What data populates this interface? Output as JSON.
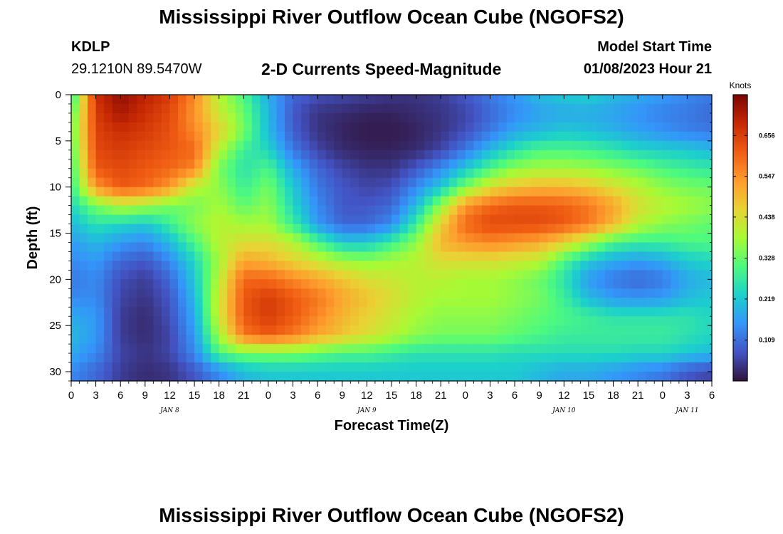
{
  "header": {
    "title": "Mississippi River Outflow Ocean Cube (NGOFS2)",
    "station_id": "KDLP",
    "station_coords": "29.1210N  89.5470W",
    "subtitle": "2-D Currents Speed-Magnitude",
    "model_start_label": "Model Start Time",
    "model_start_value": "01/08/2023 Hour 21"
  },
  "footer": {
    "title": "Mississippi River Outflow Ocean Cube (NGOFS2)"
  },
  "chart_data": {
    "type": "heatmap",
    "xlabel": "Forecast Time(Z)",
    "ylabel": "Depth (ft)",
    "x_unit": "hours from 2023-01-08 00Z",
    "xlim": [
      0,
      78
    ],
    "ylim": [
      0,
      31
    ],
    "x_tick_values": [
      0,
      3,
      6,
      9,
      12,
      15,
      18,
      21,
      24,
      27,
      30,
      33,
      36,
      39,
      42,
      45,
      48,
      51,
      54,
      57,
      60,
      63,
      66,
      69,
      72,
      75,
      78
    ],
    "x_tick_labels": [
      "0",
      "3",
      "6",
      "9",
      "12",
      "15",
      "18",
      "21",
      "0",
      "3",
      "6",
      "9",
      "12",
      "15",
      "18",
      "21",
      "0",
      "3",
      "6",
      "9",
      "12",
      "15",
      "18",
      "21",
      "0",
      "3",
      "6"
    ],
    "date_labels": [
      {
        "text": "JAN 8",
        "x": 12
      },
      {
        "text": "JAN 9",
        "x": 36
      },
      {
        "text": "JAN 10",
        "x": 60
      },
      {
        "text": "JAN 11",
        "x": 75
      }
    ],
    "y_ticks": [
      0,
      5,
      10,
      15,
      20,
      25,
      30
    ],
    "colorbar": {
      "unit": "Knots",
      "range": [
        0,
        0.765
      ],
      "ticks": [
        0.109,
        0.219,
        0.328,
        0.438,
        0.547,
        0.656
      ]
    },
    "grid_hours": [
      0,
      3,
      6,
      9,
      12,
      15,
      18,
      21,
      24,
      27,
      30,
      33,
      36,
      39,
      42,
      45,
      48,
      51,
      54,
      57,
      60,
      63,
      66,
      69,
      72,
      75,
      78
    ],
    "grid_depths": [
      0,
      2,
      4,
      6,
      8,
      10,
      12,
      14,
      16,
      18,
      20,
      22,
      24,
      26,
      28,
      30
    ],
    "speed_knots": [
      [
        0.25,
        0.68,
        0.74,
        0.7,
        0.66,
        0.56,
        0.4,
        0.3,
        0.18,
        0.1,
        0.07,
        0.06,
        0.05,
        0.04,
        0.04,
        0.05,
        0.08,
        0.12,
        0.16,
        0.2,
        0.22,
        0.23,
        0.2,
        0.18,
        0.16,
        0.14,
        0.12
      ],
      [
        0.3,
        0.66,
        0.72,
        0.68,
        0.64,
        0.54,
        0.42,
        0.33,
        0.2,
        0.08,
        0.04,
        0.03,
        0.02,
        0.02,
        0.03,
        0.04,
        0.06,
        0.1,
        0.14,
        0.17,
        0.18,
        0.18,
        0.17,
        0.15,
        0.13,
        0.12,
        0.1
      ],
      [
        0.32,
        0.65,
        0.68,
        0.66,
        0.63,
        0.56,
        0.46,
        0.34,
        0.2,
        0.09,
        0.04,
        0.02,
        0.01,
        0.01,
        0.02,
        0.04,
        0.07,
        0.12,
        0.18,
        0.2,
        0.22,
        0.21,
        0.19,
        0.17,
        0.15,
        0.13,
        0.12
      ],
      [
        0.3,
        0.64,
        0.66,
        0.64,
        0.62,
        0.6,
        0.4,
        0.28,
        0.24,
        0.12,
        0.06,
        0.03,
        0.02,
        0.02,
        0.03,
        0.06,
        0.12,
        0.2,
        0.26,
        0.3,
        0.3,
        0.29,
        0.27,
        0.24,
        0.23,
        0.22,
        0.2
      ],
      [
        0.28,
        0.62,
        0.64,
        0.62,
        0.6,
        0.56,
        0.34,
        0.26,
        0.3,
        0.18,
        0.1,
        0.06,
        0.04,
        0.04,
        0.08,
        0.14,
        0.22,
        0.3,
        0.36,
        0.38,
        0.38,
        0.37,
        0.35,
        0.33,
        0.3,
        0.28,
        0.27
      ],
      [
        0.27,
        0.54,
        0.62,
        0.6,
        0.54,
        0.4,
        0.36,
        0.28,
        0.34,
        0.22,
        0.12,
        0.08,
        0.06,
        0.07,
        0.14,
        0.22,
        0.34,
        0.44,
        0.48,
        0.5,
        0.5,
        0.48,
        0.44,
        0.4,
        0.36,
        0.34,
        0.33
      ],
      [
        0.24,
        0.34,
        0.4,
        0.38,
        0.34,
        0.34,
        0.38,
        0.32,
        0.36,
        0.24,
        0.14,
        0.08,
        0.08,
        0.1,
        0.2,
        0.36,
        0.54,
        0.6,
        0.62,
        0.62,
        0.61,
        0.58,
        0.52,
        0.44,
        0.4,
        0.38,
        0.36
      ],
      [
        0.2,
        0.26,
        0.24,
        0.22,
        0.28,
        0.36,
        0.4,
        0.38,
        0.38,
        0.28,
        0.16,
        0.1,
        0.1,
        0.14,
        0.28,
        0.46,
        0.6,
        0.64,
        0.64,
        0.64,
        0.62,
        0.58,
        0.5,
        0.4,
        0.36,
        0.34,
        0.32
      ],
      [
        0.16,
        0.2,
        0.16,
        0.14,
        0.2,
        0.3,
        0.4,
        0.44,
        0.44,
        0.4,
        0.3,
        0.22,
        0.22,
        0.28,
        0.36,
        0.5,
        0.54,
        0.56,
        0.54,
        0.52,
        0.46,
        0.38,
        0.3,
        0.28,
        0.28,
        0.3,
        0.3
      ],
      [
        0.14,
        0.16,
        0.1,
        0.08,
        0.14,
        0.24,
        0.38,
        0.52,
        0.5,
        0.46,
        0.42,
        0.38,
        0.36,
        0.38,
        0.4,
        0.44,
        0.44,
        0.44,
        0.42,
        0.4,
        0.3,
        0.22,
        0.18,
        0.16,
        0.18,
        0.22,
        0.24
      ],
      [
        0.12,
        0.14,
        0.07,
        0.05,
        0.1,
        0.22,
        0.4,
        0.6,
        0.6,
        0.56,
        0.52,
        0.48,
        0.44,
        0.42,
        0.4,
        0.4,
        0.38,
        0.38,
        0.36,
        0.33,
        0.26,
        0.16,
        0.12,
        0.1,
        0.12,
        0.18,
        0.2
      ],
      [
        0.14,
        0.14,
        0.06,
        0.04,
        0.08,
        0.2,
        0.42,
        0.62,
        0.66,
        0.62,
        0.58,
        0.52,
        0.48,
        0.44,
        0.4,
        0.38,
        0.38,
        0.38,
        0.36,
        0.34,
        0.28,
        0.2,
        0.16,
        0.15,
        0.16,
        0.2,
        0.22
      ],
      [
        0.18,
        0.16,
        0.05,
        0.03,
        0.07,
        0.18,
        0.42,
        0.62,
        0.66,
        0.62,
        0.56,
        0.5,
        0.46,
        0.42,
        0.38,
        0.36,
        0.36,
        0.36,
        0.34,
        0.32,
        0.3,
        0.28,
        0.26,
        0.26,
        0.26,
        0.26,
        0.24
      ],
      [
        0.2,
        0.16,
        0.05,
        0.03,
        0.06,
        0.16,
        0.38,
        0.58,
        0.62,
        0.58,
        0.52,
        0.48,
        0.44,
        0.4,
        0.36,
        0.34,
        0.34,
        0.34,
        0.32,
        0.3,
        0.28,
        0.28,
        0.28,
        0.28,
        0.28,
        0.26,
        0.24
      ],
      [
        0.18,
        0.14,
        0.06,
        0.04,
        0.06,
        0.14,
        0.3,
        0.34,
        0.34,
        0.34,
        0.32,
        0.3,
        0.3,
        0.28,
        0.26,
        0.26,
        0.26,
        0.26,
        0.25,
        0.25,
        0.25,
        0.25,
        0.25,
        0.24,
        0.24,
        0.22,
        0.2
      ],
      [
        0.14,
        0.1,
        0.05,
        0.03,
        0.04,
        0.08,
        0.14,
        0.2,
        0.22,
        0.22,
        0.22,
        0.22,
        0.22,
        0.22,
        0.22,
        0.22,
        0.22,
        0.22,
        0.22,
        0.2,
        0.18,
        0.18,
        0.16,
        0.14,
        0.12,
        0.08,
        0.06
      ]
    ]
  }
}
